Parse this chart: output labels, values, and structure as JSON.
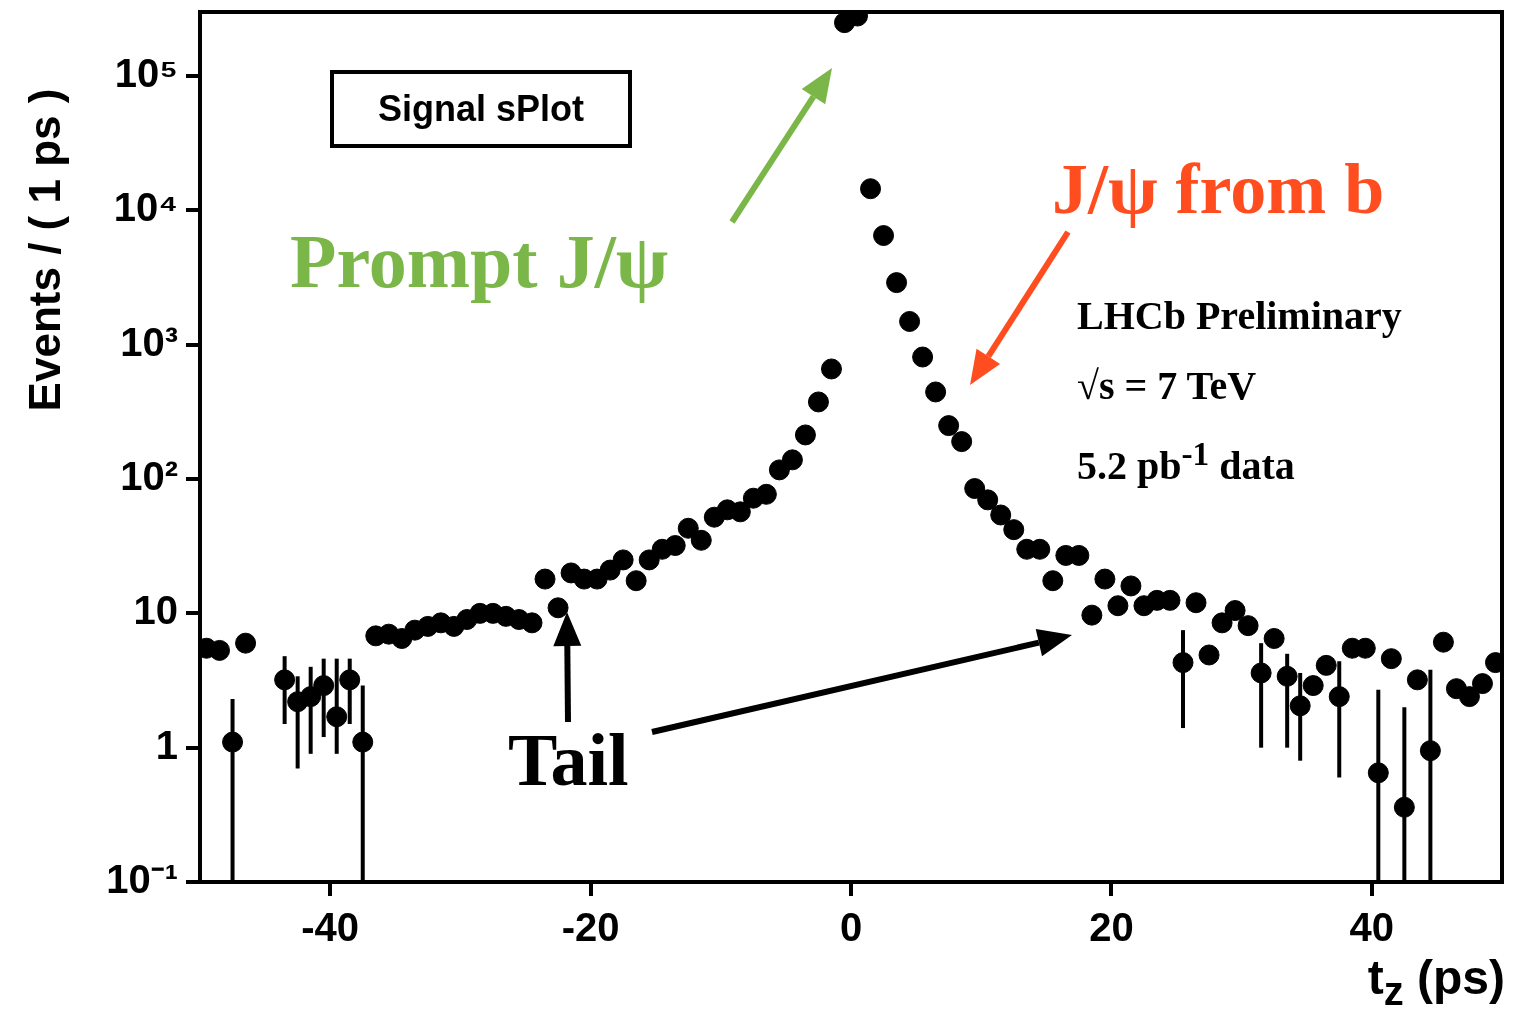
{
  "chart_data": {
    "type": "scatter",
    "xlabel": "t$_{z}$ (ps)",
    "ylabel": "Events / ( 1 ps )",
    "x": [
      -49.5,
      -48.5,
      -47.5,
      -46.5,
      -45.5,
      -44.5,
      -43.5,
      -42.5,
      -41.5,
      -40.5,
      -39.5,
      -38.5,
      -37.5,
      -36.5,
      -35.5,
      -34.5,
      -33.5,
      -32.5,
      -31.5,
      -30.5,
      -29.5,
      -28.5,
      -27.5,
      -26.5,
      -25.5,
      -24.5,
      -23.5,
      -22.5,
      -21.5,
      -20.5,
      -19.5,
      -18.5,
      -17.5,
      -16.5,
      -15.5,
      -14.5,
      -13.5,
      -12.5,
      -11.5,
      -10.5,
      -9.5,
      -8.5,
      -7.5,
      -6.5,
      -5.5,
      -4.5,
      -3.5,
      -2.5,
      -1.5,
      -0.5,
      0.5,
      1.5,
      2.5,
      3.5,
      4.5,
      5.5,
      6.5,
      7.5,
      8.5,
      9.5,
      10.5,
      11.5,
      12.5,
      13.5,
      14.5,
      15.5,
      16.5,
      17.5,
      18.5,
      19.5,
      20.5,
      21.5,
      22.5,
      23.5,
      24.5,
      25.5,
      26.5,
      27.5,
      28.5,
      29.5,
      30.5,
      31.5,
      32.5,
      33.5,
      34.5,
      35.5,
      36.5,
      37.5,
      38.5,
      39.5,
      40.5,
      41.5,
      42.5,
      43.5,
      44.5,
      45.5,
      46.5,
      47.5,
      48.5,
      49.5
    ],
    "values": [
      5.5,
      5.3,
      1.1,
      6,
      null,
      null,
      3.2,
      2.2,
      2.4,
      2.9,
      1.7,
      3.2,
      1.1,
      6.8,
      7,
      6.5,
      7.5,
      8,
      8.5,
      8,
      9,
      10,
      10,
      9.5,
      9,
      8.5,
      18,
      11,
      20,
      18,
      18,
      21,
      25,
      17.5,
      25,
      30,
      32,
      43,
      35,
      52,
      59,
      57,
      72,
      77,
      117,
      139,
      213,
      375,
      660,
      250000,
      280000,
      14500,
      6500,
      2900,
      1490,
      810,
      445,
      250,
      190,
      85,
      70,
      54,
      42,
      30,
      30,
      17.5,
      27,
      27,
      9.7,
      18,
      11.4,
      16,
      11.4,
      12.5,
      12.5,
      4.3,
      12,
      4.9,
      8.5,
      10.5,
      8.1,
      3.6,
      6.5,
      3.4,
      2.05,
      2.9,
      4.1,
      2.4,
      5.5,
      5.5,
      0.65,
      4.6,
      0.36,
      3.2,
      0.95,
      6.1,
      2.75,
      2.4,
      3,
      4.3
    ],
    "errors": [
      null,
      null,
      [
        0.1,
        2.3
      ],
      null,
      null,
      null,
      [
        1.5,
        4.8
      ],
      [
        0.7,
        3.4
      ],
      [
        0.9,
        4
      ],
      [
        1.2,
        4.6
      ],
      [
        0.9,
        4.6
      ],
      [
        1.5,
        4.6
      ],
      [
        0.1,
        2.9
      ],
      null,
      null,
      null,
      null,
      null,
      null,
      null,
      null,
      null,
      null,
      null,
      null,
      null,
      null,
      null,
      null,
      null,
      null,
      null,
      null,
      null,
      null,
      null,
      null,
      null,
      null,
      null,
      null,
      null,
      null,
      null,
      null,
      null,
      null,
      null,
      null,
      null,
      null,
      null,
      null,
      null,
      null,
      null,
      null,
      null,
      null,
      null,
      null,
      null,
      null,
      null,
      null,
      null,
      null,
      null,
      null,
      null,
      null,
      null,
      null,
      null,
      null,
      [
        1.4,
        7.5
      ],
      null,
      null,
      null,
      null,
      null,
      [
        1,
        6
      ],
      null,
      [
        1,
        5
      ],
      [
        0.8,
        3.6
      ],
      null,
      null,
      [
        0.6,
        4.4
      ],
      null,
      null,
      [
        0.1,
        2.7
      ],
      null,
      [
        0.1,
        2
      ],
      null,
      [
        0.1,
        3.8
      ],
      null,
      null,
      null,
      null,
      null
    ],
    "color": "#000000",
    "marker": "circle",
    "log": "y",
    "grid": false,
    "xlim": [
      -50,
      50
    ],
    "xticks": [
      -40,
      -20,
      0,
      20,
      40
    ],
    "ylim": [
      0.1,
      300000
    ],
    "yticks": [
      {
        "value": 0.1,
        "label": "10⁻¹"
      },
      1,
      10,
      {
        "value": 100,
        "label": "10²"
      },
      {
        "value": 1000,
        "label": "10³"
      },
      {
        "value": 10000,
        "label": "10⁴"
      },
      {
        "value": 100000,
        "label": "10⁵"
      }
    ],
    "annotations": [
      "Signal sPlot",
      "Prompt J/ψ",
      "J/ψ from b",
      "LHCb Preliminary",
      "√s = 7 TeV",
      "5.2 pb$^{-1}$ data",
      "Tail"
    ]
  }
}
